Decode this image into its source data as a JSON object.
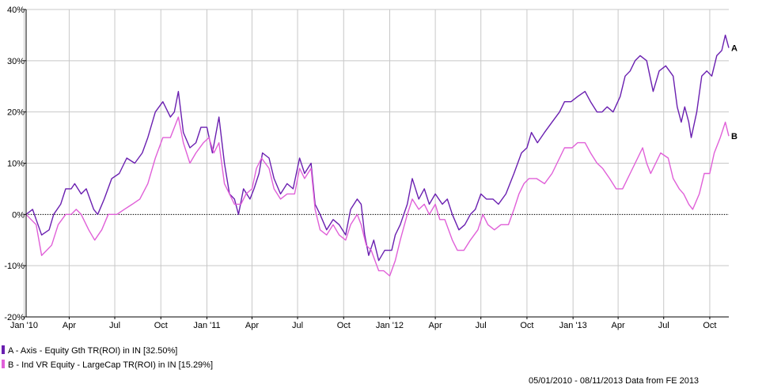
{
  "chart_data": {
    "type": "line",
    "title": "",
    "xlabel": "",
    "ylabel": "",
    "ylim": [
      -20,
      40
    ],
    "yticks": [
      -20,
      -10,
      0,
      10,
      20,
      30,
      40
    ],
    "y_tick_suffix": "%",
    "xlim": [
      "2010-01-05",
      "2013-11-08"
    ],
    "x_ticks": [
      {
        "label": "Jan '10",
        "date": "2010-01-01"
      },
      {
        "label": "Apr",
        "date": "2010-04-01"
      },
      {
        "label": "Jul",
        "date": "2010-07-01"
      },
      {
        "label": "Oct",
        "date": "2010-10-01"
      },
      {
        "label": "Jan '11",
        "date": "2011-01-01"
      },
      {
        "label": "Apr",
        "date": "2011-04-01"
      },
      {
        "label": "Jul",
        "date": "2011-07-01"
      },
      {
        "label": "Oct",
        "date": "2011-10-01"
      },
      {
        "label": "Jan '12",
        "date": "2012-01-01"
      },
      {
        "label": "Apr",
        "date": "2012-04-01"
      },
      {
        "label": "Jul",
        "date": "2012-07-01"
      },
      {
        "label": "Oct",
        "date": "2012-10-01"
      },
      {
        "label": "Jan '13",
        "date": "2013-01-01"
      },
      {
        "label": "Apr",
        "date": "2013-04-01"
      },
      {
        "label": "Jul",
        "date": "2013-07-01"
      },
      {
        "label": "Oct",
        "date": "2013-10-01"
      }
    ],
    "grid": true,
    "zero_line": "dotted",
    "legend_position": "bottom-left",
    "series": [
      {
        "name": "A - Axis - Equity Gth TR(ROI) in IN [32.50%]",
        "end_label": "A",
        "color": "#6a1fb0",
        "points": [
          [
            "2010-01-05",
            0
          ],
          [
            "2010-01-18",
            1
          ],
          [
            "2010-01-25",
            -1
          ],
          [
            "2010-02-05",
            -4
          ],
          [
            "2010-02-20",
            -3
          ],
          [
            "2010-03-01",
            0
          ],
          [
            "2010-03-15",
            2
          ],
          [
            "2010-03-25",
            5
          ],
          [
            "2010-04-05",
            5
          ],
          [
            "2010-04-12",
            6
          ],
          [
            "2010-04-25",
            4
          ],
          [
            "2010-05-05",
            5
          ],
          [
            "2010-05-20",
            1
          ],
          [
            "2010-05-28",
            0
          ],
          [
            "2010-06-10",
            3
          ],
          [
            "2010-06-25",
            7
          ],
          [
            "2010-07-10",
            8
          ],
          [
            "2010-07-25",
            11
          ],
          [
            "2010-08-10",
            10
          ],
          [
            "2010-08-25",
            12
          ],
          [
            "2010-09-05",
            15
          ],
          [
            "2010-09-20",
            20
          ],
          [
            "2010-10-05",
            22
          ],
          [
            "2010-10-20",
            19
          ],
          [
            "2010-10-28",
            20
          ],
          [
            "2010-11-05",
            24
          ],
          [
            "2010-11-15",
            16
          ],
          [
            "2010-11-28",
            13
          ],
          [
            "2010-12-10",
            14
          ],
          [
            "2010-12-20",
            17
          ],
          [
            "2011-01-01",
            17
          ],
          [
            "2011-01-12",
            12
          ],
          [
            "2011-01-25",
            19
          ],
          [
            "2011-02-05",
            10
          ],
          [
            "2011-02-15",
            4
          ],
          [
            "2011-02-25",
            3
          ],
          [
            "2011-03-05",
            0
          ],
          [
            "2011-03-15",
            5
          ],
          [
            "2011-03-28",
            3
          ],
          [
            "2011-04-05",
            5
          ],
          [
            "2011-04-15",
            8
          ],
          [
            "2011-04-22",
            12
          ],
          [
            "2011-05-05",
            11
          ],
          [
            "2011-05-15",
            7
          ],
          [
            "2011-05-28",
            4
          ],
          [
            "2011-06-10",
            6
          ],
          [
            "2011-06-22",
            5
          ],
          [
            "2011-07-05",
            11
          ],
          [
            "2011-07-15",
            8
          ],
          [
            "2011-07-28",
            10
          ],
          [
            "2011-08-05",
            2
          ],
          [
            "2011-08-15",
            0
          ],
          [
            "2011-08-28",
            -3
          ],
          [
            "2011-09-10",
            -1
          ],
          [
            "2011-09-22",
            -2
          ],
          [
            "2011-10-05",
            -4
          ],
          [
            "2011-10-15",
            1
          ],
          [
            "2011-10-28",
            3
          ],
          [
            "2011-11-05",
            2
          ],
          [
            "2011-11-12",
            -4
          ],
          [
            "2011-11-20",
            -8
          ],
          [
            "2011-11-30",
            -5
          ],
          [
            "2011-12-10",
            -9
          ],
          [
            "2011-12-22",
            -7
          ],
          [
            "2012-01-05",
            -7
          ],
          [
            "2012-01-12",
            -4
          ],
          [
            "2012-01-22",
            -2
          ],
          [
            "2012-02-05",
            2
          ],
          [
            "2012-02-15",
            7
          ],
          [
            "2012-02-28",
            3
          ],
          [
            "2012-03-10",
            5
          ],
          [
            "2012-03-20",
            2
          ],
          [
            "2012-04-01",
            4
          ],
          [
            "2012-04-15",
            2
          ],
          [
            "2012-04-25",
            3
          ],
          [
            "2012-05-05",
            0
          ],
          [
            "2012-05-18",
            -3
          ],
          [
            "2012-05-30",
            -2
          ],
          [
            "2012-06-10",
            0
          ],
          [
            "2012-06-20",
            1
          ],
          [
            "2012-07-01",
            4
          ],
          [
            "2012-07-12",
            3
          ],
          [
            "2012-07-25",
            3
          ],
          [
            "2012-08-05",
            2
          ],
          [
            "2012-08-20",
            4
          ],
          [
            "2012-09-05",
            8
          ],
          [
            "2012-09-20",
            12
          ],
          [
            "2012-10-01",
            13
          ],
          [
            "2012-10-10",
            16
          ],
          [
            "2012-10-22",
            14
          ],
          [
            "2012-11-05",
            16
          ],
          [
            "2012-11-20",
            18
          ],
          [
            "2012-12-05",
            20
          ],
          [
            "2012-12-15",
            22
          ],
          [
            "2012-12-28",
            22
          ],
          [
            "2013-01-10",
            23
          ],
          [
            "2013-01-25",
            24
          ],
          [
            "2013-02-05",
            22
          ],
          [
            "2013-02-18",
            20
          ],
          [
            "2013-02-28",
            20
          ],
          [
            "2013-03-10",
            21
          ],
          [
            "2013-03-22",
            20
          ],
          [
            "2013-04-05",
            23
          ],
          [
            "2013-04-15",
            27
          ],
          [
            "2013-04-25",
            28
          ],
          [
            "2013-05-05",
            30
          ],
          [
            "2013-05-15",
            31
          ],
          [
            "2013-05-28",
            30
          ],
          [
            "2013-06-10",
            24
          ],
          [
            "2013-06-22",
            28
          ],
          [
            "2013-07-05",
            29
          ],
          [
            "2013-07-20",
            27
          ],
          [
            "2013-07-28",
            21
          ],
          [
            "2013-08-05",
            18
          ],
          [
            "2013-08-12",
            21
          ],
          [
            "2013-08-20",
            18
          ],
          [
            "2013-08-25",
            15
          ],
          [
            "2013-09-05",
            20
          ],
          [
            "2013-09-15",
            27
          ],
          [
            "2013-09-25",
            28
          ],
          [
            "2013-10-05",
            27
          ],
          [
            "2013-10-15",
            31
          ],
          [
            "2013-10-25",
            32
          ],
          [
            "2013-11-01",
            35
          ],
          [
            "2013-11-08",
            32.5
          ]
        ]
      },
      {
        "name": "B - Ind VR Equity - LargeCap TR(ROI) in IN [15.29%]",
        "end_label": "B",
        "color": "#e060d8",
        "points": [
          [
            "2010-01-05",
            0
          ],
          [
            "2010-01-15",
            -1
          ],
          [
            "2010-01-25",
            -2
          ],
          [
            "2010-02-05",
            -8
          ],
          [
            "2010-02-15",
            -7
          ],
          [
            "2010-02-25",
            -6
          ],
          [
            "2010-03-10",
            -2
          ],
          [
            "2010-03-25",
            0
          ],
          [
            "2010-04-05",
            0
          ],
          [
            "2010-04-15",
            1
          ],
          [
            "2010-04-25",
            0
          ],
          [
            "2010-05-10",
            -3
          ],
          [
            "2010-05-22",
            -5
          ],
          [
            "2010-06-05",
            -3
          ],
          [
            "2010-06-18",
            0
          ],
          [
            "2010-07-05",
            0
          ],
          [
            "2010-07-20",
            1
          ],
          [
            "2010-08-05",
            2
          ],
          [
            "2010-08-20",
            3
          ],
          [
            "2010-09-05",
            6
          ],
          [
            "2010-09-20",
            11
          ],
          [
            "2010-10-05",
            15
          ],
          [
            "2010-10-20",
            15
          ],
          [
            "2010-11-05",
            19
          ],
          [
            "2010-11-15",
            14
          ],
          [
            "2010-11-28",
            10
          ],
          [
            "2010-12-10",
            12
          ],
          [
            "2010-12-25",
            14
          ],
          [
            "2011-01-05",
            15
          ],
          [
            "2011-01-15",
            12
          ],
          [
            "2011-01-25",
            14
          ],
          [
            "2011-02-05",
            6
          ],
          [
            "2011-02-15",
            4
          ],
          [
            "2011-02-25",
            2
          ],
          [
            "2011-03-10",
            2
          ],
          [
            "2011-03-20",
            4
          ],
          [
            "2011-04-01",
            5
          ],
          [
            "2011-04-10",
            9
          ],
          [
            "2011-04-20",
            11
          ],
          [
            "2011-05-05",
            9
          ],
          [
            "2011-05-15",
            5
          ],
          [
            "2011-05-28",
            3
          ],
          [
            "2011-06-10",
            4
          ],
          [
            "2011-06-25",
            4
          ],
          [
            "2011-07-05",
            9
          ],
          [
            "2011-07-15",
            7
          ],
          [
            "2011-07-28",
            9
          ],
          [
            "2011-08-05",
            1
          ],
          [
            "2011-08-15",
            -3
          ],
          [
            "2011-08-28",
            -4
          ],
          [
            "2011-09-10",
            -2
          ],
          [
            "2011-09-22",
            -4
          ],
          [
            "2011-10-05",
            -5
          ],
          [
            "2011-10-15",
            -2
          ],
          [
            "2011-10-28",
            0
          ],
          [
            "2011-11-05",
            -2
          ],
          [
            "2011-11-15",
            -6
          ],
          [
            "2011-11-25",
            -7
          ],
          [
            "2011-12-10",
            -11
          ],
          [
            "2011-12-20",
            -11
          ],
          [
            "2012-01-01",
            -12
          ],
          [
            "2012-01-12",
            -9
          ],
          [
            "2012-01-22",
            -5
          ],
          [
            "2012-02-05",
            0
          ],
          [
            "2012-02-15",
            3
          ],
          [
            "2012-02-28",
            1
          ],
          [
            "2012-03-10",
            2
          ],
          [
            "2012-03-20",
            0
          ],
          [
            "2012-04-01",
            2
          ],
          [
            "2012-04-10",
            -1
          ],
          [
            "2012-04-20",
            -1
          ],
          [
            "2012-05-05",
            -5
          ],
          [
            "2012-05-15",
            -7
          ],
          [
            "2012-05-28",
            -7
          ],
          [
            "2012-06-10",
            -5
          ],
          [
            "2012-06-25",
            -3
          ],
          [
            "2012-07-05",
            0
          ],
          [
            "2012-07-15",
            -2
          ],
          [
            "2012-07-28",
            -3
          ],
          [
            "2012-08-10",
            -2
          ],
          [
            "2012-08-25",
            -2
          ],
          [
            "2012-09-05",
            1
          ],
          [
            "2012-09-15",
            4
          ],
          [
            "2012-09-25",
            6
          ],
          [
            "2012-10-05",
            7
          ],
          [
            "2012-10-20",
            7
          ],
          [
            "2012-11-05",
            6
          ],
          [
            "2012-11-20",
            8
          ],
          [
            "2012-12-05",
            11
          ],
          [
            "2012-12-15",
            13
          ],
          [
            "2012-12-30",
            13
          ],
          [
            "2013-01-10",
            14
          ],
          [
            "2013-01-25",
            14
          ],
          [
            "2013-02-05",
            12
          ],
          [
            "2013-02-18",
            10
          ],
          [
            "2013-03-01",
            9
          ],
          [
            "2013-03-15",
            7
          ],
          [
            "2013-03-28",
            5
          ],
          [
            "2013-04-10",
            5
          ],
          [
            "2013-04-25",
            8
          ],
          [
            "2013-05-10",
            11
          ],
          [
            "2013-05-20",
            13
          ],
          [
            "2013-05-28",
            10
          ],
          [
            "2013-06-05",
            8
          ],
          [
            "2013-06-15",
            10
          ],
          [
            "2013-06-25",
            12
          ],
          [
            "2013-07-10",
            11
          ],
          [
            "2013-07-20",
            7
          ],
          [
            "2013-08-01",
            5
          ],
          [
            "2013-08-10",
            4
          ],
          [
            "2013-08-20",
            2
          ],
          [
            "2013-08-28",
            1
          ],
          [
            "2013-09-10",
            4
          ],
          [
            "2013-09-20",
            8
          ],
          [
            "2013-10-01",
            8
          ],
          [
            "2013-10-10",
            12
          ],
          [
            "2013-10-22",
            15
          ],
          [
            "2013-11-01",
            18
          ],
          [
            "2013-11-08",
            15.29
          ]
        ]
      }
    ]
  },
  "footer": "05/01/2010 - 08/11/2013 Data from FE 2013"
}
